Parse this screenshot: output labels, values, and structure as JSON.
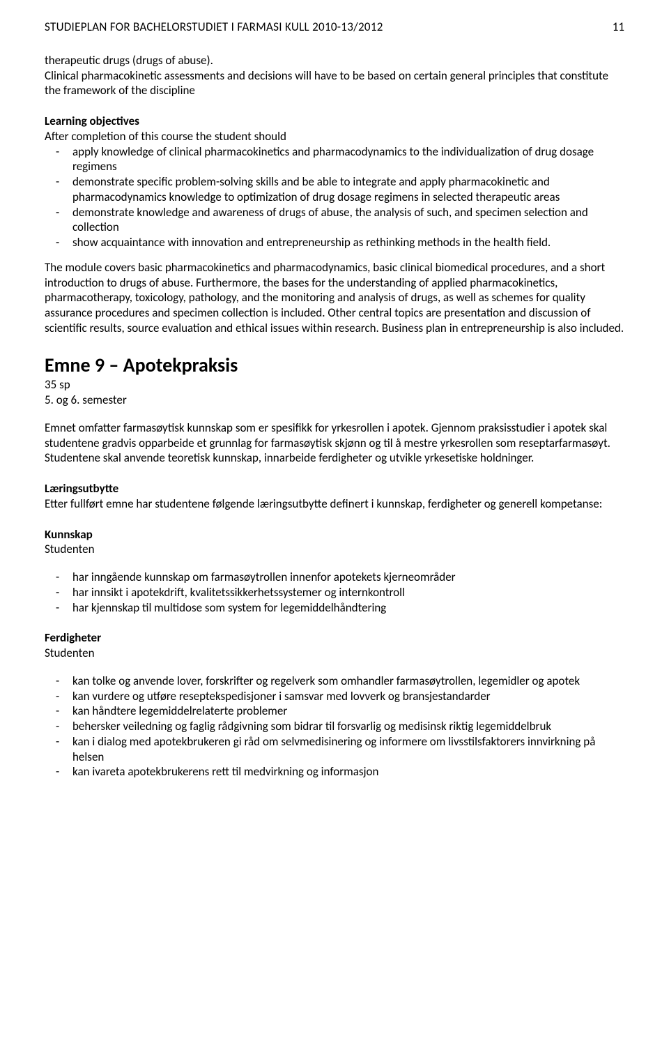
{
  "header": {
    "title": "STUDIEPLAN FOR BACHELORSTUDIET I FARMASI KULL 2010-13/2012",
    "page": "11"
  },
  "intro": {
    "line1": "therapeutic drugs (drugs of abuse).",
    "line2": "Clinical pharmacokinetic assessments and decisions will have to be based on certain general principles that constitute the framework of the discipline"
  },
  "learning": {
    "heading": "Learning objectives",
    "lead": "After completion of this course the student should",
    "items": [
      "apply knowledge of clinical pharmacokinetics and pharmacodynamics to the individualization of drug dosage regimens",
      "demonstrate specific problem-solving skills and be able to integrate and apply pharmacokinetic and pharmacodynamics knowledge to optimization of drug dosage regimens in selected therapeutic areas",
      "demonstrate knowledge and awareness of drugs of abuse, the analysis of such, and specimen selection and collection",
      "show acquaintance with innovation and entrepreneurship as rethinking methods in the health field."
    ]
  },
  "module_para": "The module covers basic pharmacokinetics and pharmacodynamics, basic clinical biomedical procedures, and a short introduction to drugs of abuse. Furthermore, the bases for the understanding of applied pharmacokinetics, pharmacotherapy, toxicology, pathology, and the monitoring and analysis of drugs, as well as schemes for quality assurance procedures and specimen collection is included. Other central topics are presentation and discussion of scientific results, source evaluation and ethical issues within research. Business plan in entrepreneurship is also included.",
  "emne9": {
    "title": "Emne 9 – Apotekpraksis",
    "sp": "35 sp",
    "semester": "5. og 6. semester",
    "intro": "Emnet omfatter farmasøytisk kunnskap som er spesifikk for yrkesrollen i apotek. Gjennom praksisstudier i apotek skal studentene gradvis opparbeide et grunnlag for farmasøytisk skjønn og til å mestre yrkesrollen som reseptarfarmasøyt. Studentene skal anvende teoretisk kunnskap, innarbeide ferdigheter og utvikle yrkesetiske holdninger.",
    "larings_heading": "Læringsutbytte",
    "larings_text": "Etter fullført emne har studentene følgende læringsutbytte definert i kunnskap, ferdigheter og generell kompetanse:",
    "kunnskap_heading": "Kunnskap",
    "studenten": "Studenten",
    "kunnskap_items": [
      "har inngående kunnskap om farmasøytrollen innenfor apotekets kjerneområder",
      "har innsikt i apotekdrift, kvalitetssikkerhetssystemer og internkontroll",
      "har kjennskap til multidose som system for legemiddelhåndtering"
    ],
    "ferdigheter_heading": "Ferdigheter",
    "ferdigheter_items": [
      "kan tolke og anvende lover, forskrifter og regelverk som omhandler farmasøytrollen, legemidler og apotek",
      "kan vurdere og utføre reseptekspedisjoner i samsvar med lovverk og bransjestandarder",
      "kan håndtere legemiddelrelaterte problemer",
      "behersker veiledning og faglig rådgivning som bidrar til forsvarlig og medisinsk riktig legemiddelbruk",
      "kan i dialog med apotekbrukeren gi råd om selvmedisinering og informere om livsstilsfaktorers innvirkning på helsen",
      "kan ivareta apotekbrukerens rett til medvirkning og informasjon"
    ]
  }
}
